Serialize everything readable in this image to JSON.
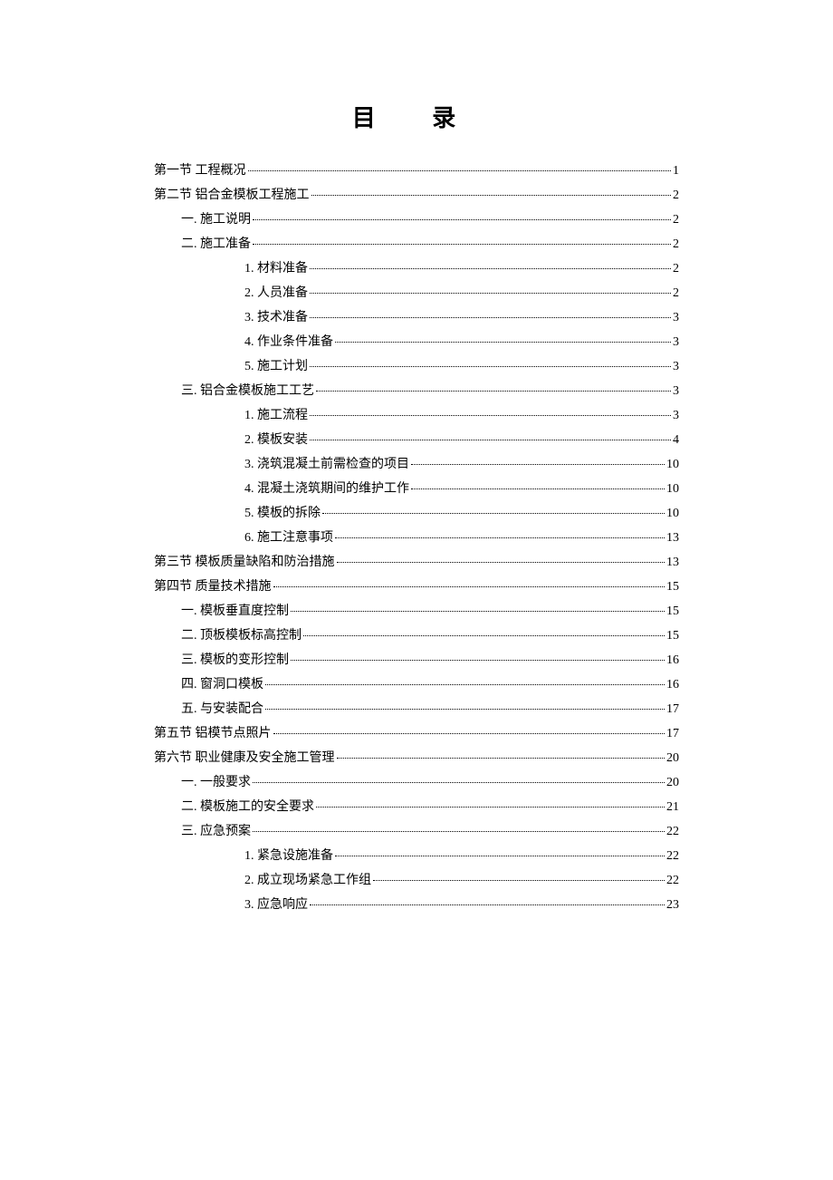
{
  "title": "目 录",
  "entries": [
    {
      "level": 0,
      "label": "第一节  工程概况",
      "page": "1"
    },
    {
      "level": 0,
      "label": "第二节  铝合金模板工程施工",
      "page": "2"
    },
    {
      "level": 1,
      "label": "一.  施工说明",
      "page": "2"
    },
    {
      "level": 1,
      "label": "二.  施工准备",
      "page": "2"
    },
    {
      "level": 2,
      "label": "1.  材料准备",
      "page": "2"
    },
    {
      "level": 2,
      "label": "2.  人员准备",
      "page": "2"
    },
    {
      "level": 2,
      "label": "3.  技术准备",
      "page": "3"
    },
    {
      "level": 2,
      "label": "4.  作业条件准备",
      "page": "3"
    },
    {
      "level": 2,
      "label": "5.  施工计划",
      "page": "3"
    },
    {
      "level": 1,
      "label": "三.  铝合金模板施工工艺",
      "page": "3"
    },
    {
      "level": 2,
      "label": "1.  施工流程",
      "page": "3"
    },
    {
      "level": 2,
      "label": "2.  模板安装",
      "page": "4"
    },
    {
      "level": 2,
      "label": "3.  浇筑混凝土前需检查的项目",
      "page": "10"
    },
    {
      "level": 2,
      "label": "4.  混凝土浇筑期间的维护工作",
      "page": "10"
    },
    {
      "level": 2,
      "label": "5.  模板的拆除",
      "page": "10"
    },
    {
      "level": 2,
      "label": "6.  施工注意事项",
      "page": "13"
    },
    {
      "level": 0,
      "label": "第三节  模板质量缺陷和防治措施",
      "page": "13"
    },
    {
      "level": 0,
      "label": "第四节  质量技术措施",
      "page": "15"
    },
    {
      "level": 1,
      "label": "一.  模板垂直度控制",
      "page": "15"
    },
    {
      "level": 1,
      "label": "二.  顶板模板标高控制",
      "page": "15"
    },
    {
      "level": 1,
      "label": "三.  模板的变形控制",
      "page": "16"
    },
    {
      "level": 1,
      "label": "四.  窗洞口模板",
      "page": "16"
    },
    {
      "level": 1,
      "label": "五.  与安装配合",
      "page": "17"
    },
    {
      "level": 0,
      "label": "第五节  铝模节点照片",
      "page": "17"
    },
    {
      "level": 0,
      "label": "第六节  职业健康及安全施工管理",
      "page": "20"
    },
    {
      "level": 1,
      "label": "一.  一般要求",
      "page": "20"
    },
    {
      "level": 1,
      "label": "二.  模板施工的安全要求",
      "page": "21"
    },
    {
      "level": 1,
      "label": "三.  应急预案",
      "page": "22"
    },
    {
      "level": 2,
      "label": "1.  紧急设施准备",
      "page": "22"
    },
    {
      "level": 2,
      "label": "2.  成立现场紧急工作组",
      "page": "22"
    },
    {
      "level": 2,
      "label": "3.  应急响应",
      "page": "23"
    }
  ]
}
